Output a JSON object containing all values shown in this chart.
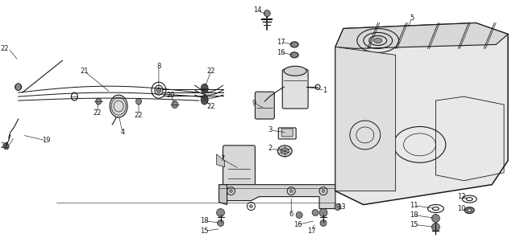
{
  "bg_color": "#ffffff",
  "line_color": "#1a1a1a",
  "fig_width": 6.4,
  "fig_height": 3.06,
  "dpi": 100,
  "label_fs": 6.0
}
